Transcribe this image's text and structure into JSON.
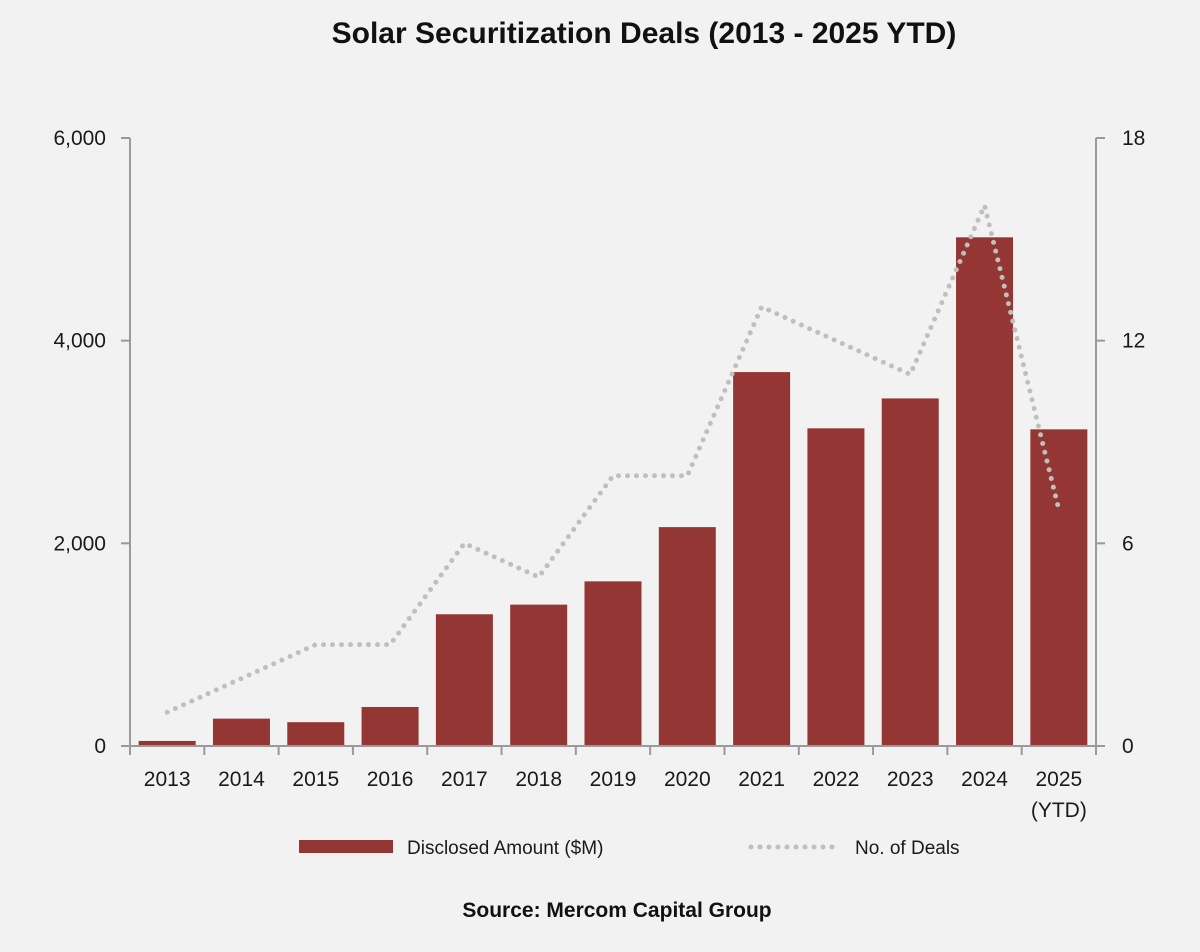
{
  "chart_data": {
    "type": "bar",
    "title": "Solar Securitization Deals (2013 - 2025 YTD)",
    "source": "Source: Mercom Capital Group",
    "categories": [
      [
        "2013"
      ],
      [
        "2014"
      ],
      [
        "2015"
      ],
      [
        "2016"
      ],
      [
        "2017"
      ],
      [
        "2018"
      ],
      [
        "2019"
      ],
      [
        "2020"
      ],
      [
        "2021"
      ],
      [
        "2022"
      ],
      [
        "2023"
      ],
      [
        "2024"
      ],
      [
        "2025",
        "(YTD)"
      ]
    ],
    "series": [
      {
        "name": "Disclosed Amount ($M)",
        "type": "bar",
        "axis": "left",
        "color": "#943634",
        "values": [
          50,
          270,
          235,
          385,
          1300,
          1395,
          1625,
          2160,
          3690,
          3135,
          3430,
          5020,
          3125
        ]
      },
      {
        "name": "No. of Deals",
        "type": "line",
        "style": "dotted",
        "axis": "right",
        "color": "#bfbfbf",
        "values": [
          1,
          2,
          3,
          3,
          6,
          5,
          8,
          8,
          13,
          12,
          11,
          16,
          7
        ]
      }
    ],
    "y_left": {
      "ylim": [
        0,
        6000
      ],
      "ticks": [
        "0",
        "2,000",
        "4,000",
        "6,000"
      ],
      "tick_values": [
        0,
        2000,
        4000,
        6000
      ]
    },
    "y_right": {
      "ylim": [
        0,
        18
      ],
      "ticks": [
        "0",
        "6",
        "12",
        "18"
      ],
      "tick_values": [
        0,
        6,
        12,
        18
      ]
    },
    "legend_position": "bottom",
    "grid": false
  }
}
